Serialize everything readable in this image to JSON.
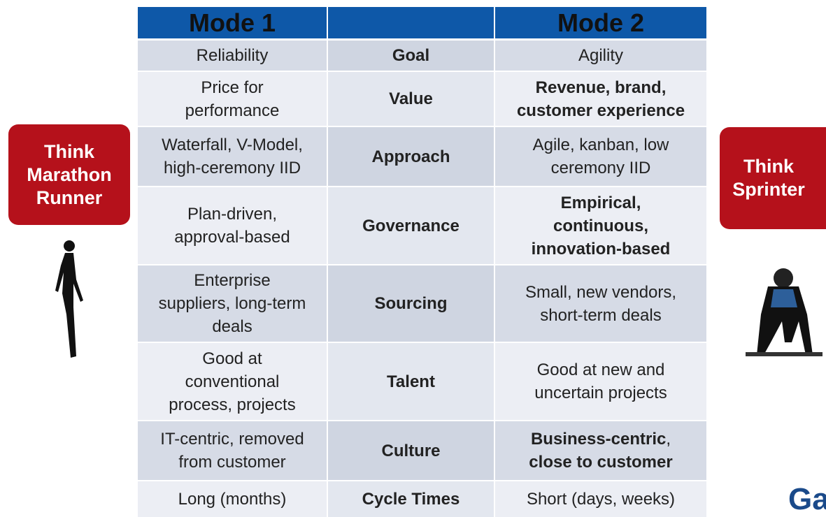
{
  "header": {
    "mode1": "Mode 1",
    "mode2": "Mode 2"
  },
  "rows": [
    {
      "mode1": [
        "Reliability"
      ],
      "aspect": "Goal",
      "mode2": [
        "Agility"
      ]
    },
    {
      "mode1": [
        "Price for",
        "performance"
      ],
      "aspect": "Value",
      "mode2": [
        "Revenue, brand,",
        "customer experience"
      ]
    },
    {
      "mode1": [
        "Waterfall, V-Model,",
        "high-ceremony IID"
      ],
      "aspect": "Approach",
      "mode2": [
        "Agile, kanban, low",
        "ceremony IID"
      ]
    },
    {
      "mode1": [
        "Plan-driven,",
        "approval-based"
      ],
      "aspect": "Governance",
      "mode2": [
        "Empirical,",
        "continuous,",
        "innovation-based"
      ]
    },
    {
      "mode1": [
        "Enterprise",
        "suppliers, long-term",
        "deals"
      ],
      "aspect": "Sourcing",
      "mode2": [
        "Small, new vendors,",
        "short-term deals"
      ]
    },
    {
      "mode1": [
        "Good at",
        "conventional",
        "process, projects"
      ],
      "aspect": "Talent",
      "mode2": [
        "Good at new and",
        "uncertain projects"
      ]
    },
    {
      "mode1": [
        "IT-centric, removed",
        "from customer"
      ],
      "aspect": "Culture",
      "mode2": [
        "Business-centric",
        ",",
        "close to customer"
      ]
    },
    {
      "mode1": [
        "Long (months)"
      ],
      "aspect": "Cycle Times",
      "mode2": [
        "Short (days, weeks)"
      ]
    }
  ],
  "left_badge": [
    "Think",
    "Marathon",
    "Runner"
  ],
  "right_badge": [
    "Think",
    "Sprinter"
  ],
  "logo": "Ga"
}
